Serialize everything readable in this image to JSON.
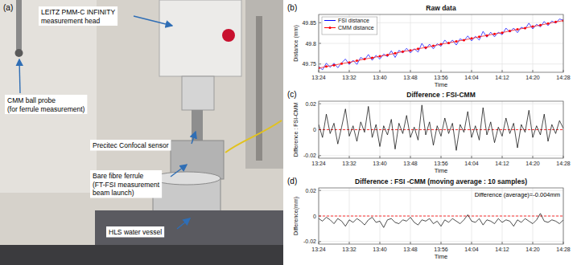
{
  "photo": {
    "panel_label": "(a)",
    "callouts": [
      {
        "lines": [
          "LEITZ PMM-C INFINITY",
          "measurement head"
        ]
      },
      {
        "lines": [
          "CMM ball probe",
          "(for ferrule measurement)"
        ]
      },
      {
        "lines": [
          "Precitec Confocal sensor"
        ]
      },
      {
        "lines": [
          "Bare fibre ferrule",
          "(FT-FSI measurement",
          "beam launch)"
        ]
      },
      {
        "lines": [
          "HLS water vessel"
        ]
      }
    ]
  },
  "chart_data": [
    {
      "type": "line",
      "panel_label": "(b)",
      "title": "Raw data",
      "x_label": "Time",
      "y_label": "Distance (mm)",
      "xlim": [
        804,
        868
      ],
      "xticks": [
        {
          "value": 804,
          "label": "13:24"
        },
        {
          "value": 812,
          "label": "13:32"
        },
        {
          "value": 820,
          "label": "13:40"
        },
        {
          "value": 828,
          "label": "13:48"
        },
        {
          "value": 836,
          "label": "13:56"
        },
        {
          "value": 844,
          "label": "14:04"
        },
        {
          "value": 852,
          "label": "14:12"
        },
        {
          "value": 860,
          "label": "14:20"
        },
        {
          "value": 868,
          "label": "14:28"
        }
      ],
      "ylim": [
        49.73,
        49.87
      ],
      "yticks": [
        49.75,
        49.8,
        49.85
      ],
      "grid": true,
      "legend": "upper-left",
      "series": [
        {
          "name": "FSI distance",
          "color": "#0000ff",
          "line_style": "solid",
          "x": [
            804,
            805,
            806,
            807,
            808,
            809,
            810,
            811,
            812,
            813,
            814,
            815,
            816,
            817,
            818,
            819,
            820,
            821,
            822,
            823,
            824,
            825,
            826,
            827,
            828,
            829,
            830,
            831,
            832,
            833,
            834,
            835,
            836,
            837,
            838,
            839,
            840,
            841,
            842,
            843,
            844,
            845,
            846,
            847,
            848,
            849,
            850,
            851,
            852,
            853,
            854,
            855,
            856,
            857,
            858,
            859,
            860,
            861,
            862,
            863,
            864,
            865,
            866,
            867,
            868
          ],
          "values": [
            49.744,
            49.736,
            49.752,
            49.742,
            49.752,
            49.741,
            49.753,
            49.762,
            49.749,
            49.759,
            49.749,
            49.766,
            49.76,
            49.773,
            49.759,
            49.771,
            49.762,
            49.774,
            49.768,
            49.782,
            49.766,
            49.783,
            49.777,
            49.788,
            49.777,
            49.787,
            49.779,
            49.8,
            49.786,
            49.798,
            49.787,
            49.799,
            49.793,
            49.808,
            49.798,
            49.808,
            49.796,
            49.811,
            49.806,
            49.818,
            49.806,
            49.817,
            49.808,
            49.829,
            49.815,
            49.827,
            49.816,
            49.827,
            49.821,
            49.837,
            49.827,
            49.837,
            49.826,
            49.839,
            49.835,
            49.849,
            49.835,
            49.846,
            49.84,
            49.853,
            49.843,
            49.854,
            49.849,
            49.859,
            49.856
          ]
        },
        {
          "name": "CMM distance",
          "color": "#ff0000",
          "line_style": "solid",
          "marker": "dot",
          "x": [
            804,
            806,
            808,
            810,
            812,
            814,
            816,
            818,
            820,
            822,
            824,
            826,
            828,
            830,
            832,
            834,
            836,
            838,
            840,
            842,
            844,
            846,
            848,
            850,
            852,
            854,
            856,
            858,
            860,
            862,
            864,
            866,
            868
          ],
          "values": [
            49.74,
            49.744,
            49.747,
            49.751,
            49.754,
            49.758,
            49.762,
            49.765,
            49.769,
            49.772,
            49.776,
            49.78,
            49.783,
            49.787,
            49.79,
            49.794,
            49.798,
            49.801,
            49.805,
            49.808,
            49.812,
            49.816,
            49.819,
            49.823,
            49.826,
            49.83,
            49.834,
            49.837,
            49.841,
            49.844,
            49.848,
            49.852,
            49.855
          ]
        }
      ]
    },
    {
      "type": "line",
      "panel_label": "(c)",
      "title": "Difference : FSI-CMM",
      "x_label": "Time",
      "y_label": "Difference : FSI-CMM",
      "xlim": [
        804,
        868
      ],
      "xticks": [
        {
          "value": 804,
          "label": "13:24"
        },
        {
          "value": 812,
          "label": "13:32"
        },
        {
          "value": 820,
          "label": "13:40"
        },
        {
          "value": 828,
          "label": "13:48"
        },
        {
          "value": 836,
          "label": "13:56"
        },
        {
          "value": 844,
          "label": "14:04"
        },
        {
          "value": 852,
          "label": "14:12"
        },
        {
          "value": 860,
          "label": "14:20"
        },
        {
          "value": 868,
          "label": "14:28"
        }
      ],
      "ylim": [
        -0.022,
        0.022
      ],
      "yticks": [
        -0.02,
        0,
        0.02
      ],
      "grid": true,
      "reference_lines": [
        {
          "value": 0,
          "color": "#ff0000",
          "line_style": "dashed"
        }
      ],
      "x": [
        804,
        805,
        806,
        807,
        808,
        809,
        810,
        811,
        812,
        813,
        814,
        815,
        816,
        817,
        818,
        819,
        820,
        821,
        822,
        823,
        824,
        825,
        826,
        827,
        828,
        829,
        830,
        831,
        832,
        833,
        834,
        835,
        836,
        837,
        838,
        839,
        840,
        841,
        842,
        843,
        844,
        845,
        846,
        847,
        848,
        849,
        850,
        851,
        852,
        853,
        854,
        855,
        856,
        857,
        858,
        859,
        860,
        861,
        862,
        863,
        864,
        865,
        866,
        867,
        868
      ],
      "series": [
        {
          "color": "#000000",
          "line_style": "solid",
          "values": [
            0.004,
            -0.006,
            0.012,
            -0.003,
            0.005,
            -0.011,
            0.002,
            0.016,
            -0.005,
            0.003,
            -0.009,
            0.006,
            -0.002,
            0.018,
            -0.006,
            0.004,
            -0.013,
            0.003,
            -0.004,
            0.008,
            -0.015,
            0.005,
            -0.003,
            0.011,
            -0.006,
            0.002,
            -0.008,
            0.019,
            -0.004,
            0.006,
            -0.012,
            0.003,
            -0.005,
            0.009,
            -0.003,
            0.005,
            -0.016,
            0.004,
            -0.002,
            0.014,
            -0.006,
            0.003,
            -0.008,
            0.017,
            -0.004,
            0.006,
            -0.01,
            0.002,
            -0.005,
            0.009,
            -0.003,
            0.005,
            -0.014,
            0.004,
            -0.002,
            0.015,
            -0.006,
            0.003,
            -0.004,
            0.012,
            -0.009,
            0.004,
            -0.003,
            0.007,
            0.001
          ]
        }
      ]
    },
    {
      "type": "line",
      "panel_label": "(d)",
      "title": "Difference : FSI -CMM (moving average : 10 samples)",
      "x_label": "Time",
      "y_label": "Difference(mm)",
      "annotation": "Difference (average)=-0.004mm",
      "xlim": [
        804,
        868
      ],
      "xticks": [
        {
          "value": 804,
          "label": "13:24"
        },
        {
          "value": 812,
          "label": "13:32"
        },
        {
          "value": 820,
          "label": "13:40"
        },
        {
          "value": 828,
          "label": "13:48"
        },
        {
          "value": 836,
          "label": "13:56"
        },
        {
          "value": 844,
          "label": "14:04"
        },
        {
          "value": 852,
          "label": "14:12"
        },
        {
          "value": 860,
          "label": "14:20"
        },
        {
          "value": 868,
          "label": "14:28"
        }
      ],
      "ylim": [
        -0.022,
        0.022
      ],
      "yticks": [
        -0.02,
        0,
        0.02
      ],
      "grid": true,
      "reference_lines": [
        {
          "value": 0,
          "color": "#ff0000",
          "line_style": "dashed"
        }
      ],
      "x": [
        804,
        805,
        806,
        807,
        808,
        809,
        810,
        811,
        812,
        813,
        814,
        815,
        816,
        817,
        818,
        819,
        820,
        821,
        822,
        823,
        824,
        825,
        826,
        827,
        828,
        829,
        830,
        831,
        832,
        833,
        834,
        835,
        836,
        837,
        838,
        839,
        840,
        841,
        842,
        843,
        844,
        845,
        846,
        847,
        848,
        849,
        850,
        851,
        852,
        853,
        854,
        855,
        856,
        857,
        858,
        859,
        860,
        861,
        862,
        863,
        864,
        865,
        866,
        867,
        868
      ],
      "series": [
        {
          "color": "#000000",
          "line_style": "solid",
          "values": [
            -0.002,
            -0.004,
            -0.001,
            -0.003,
            -0.006,
            -0.002,
            -0.004,
            -0.008,
            -0.003,
            -0.005,
            -0.002,
            -0.004,
            -0.007,
            -0.003,
            -0.001,
            -0.005,
            -0.004,
            -0.009,
            -0.003,
            -0.002,
            -0.005,
            -0.006,
            -0.003,
            -0.004,
            -0.001,
            -0.005,
            -0.007,
            -0.003,
            -0.004,
            -0.002,
            -0.006,
            -0.004,
            -0.008,
            -0.003,
            -0.005,
            -0.002,
            -0.004,
            -0.006,
            -0.003,
            0.001,
            -0.004,
            -0.005,
            -0.002,
            -0.007,
            -0.003,
            -0.004,
            -0.006,
            -0.002,
            -0.005,
            -0.003,
            -0.004,
            -0.008,
            -0.003,
            -0.005,
            -0.002,
            -0.004,
            -0.006,
            -0.003,
            0.002,
            -0.004,
            -0.005,
            -0.003,
            -0.004,
            -0.006,
            -0.003
          ]
        }
      ]
    }
  ]
}
